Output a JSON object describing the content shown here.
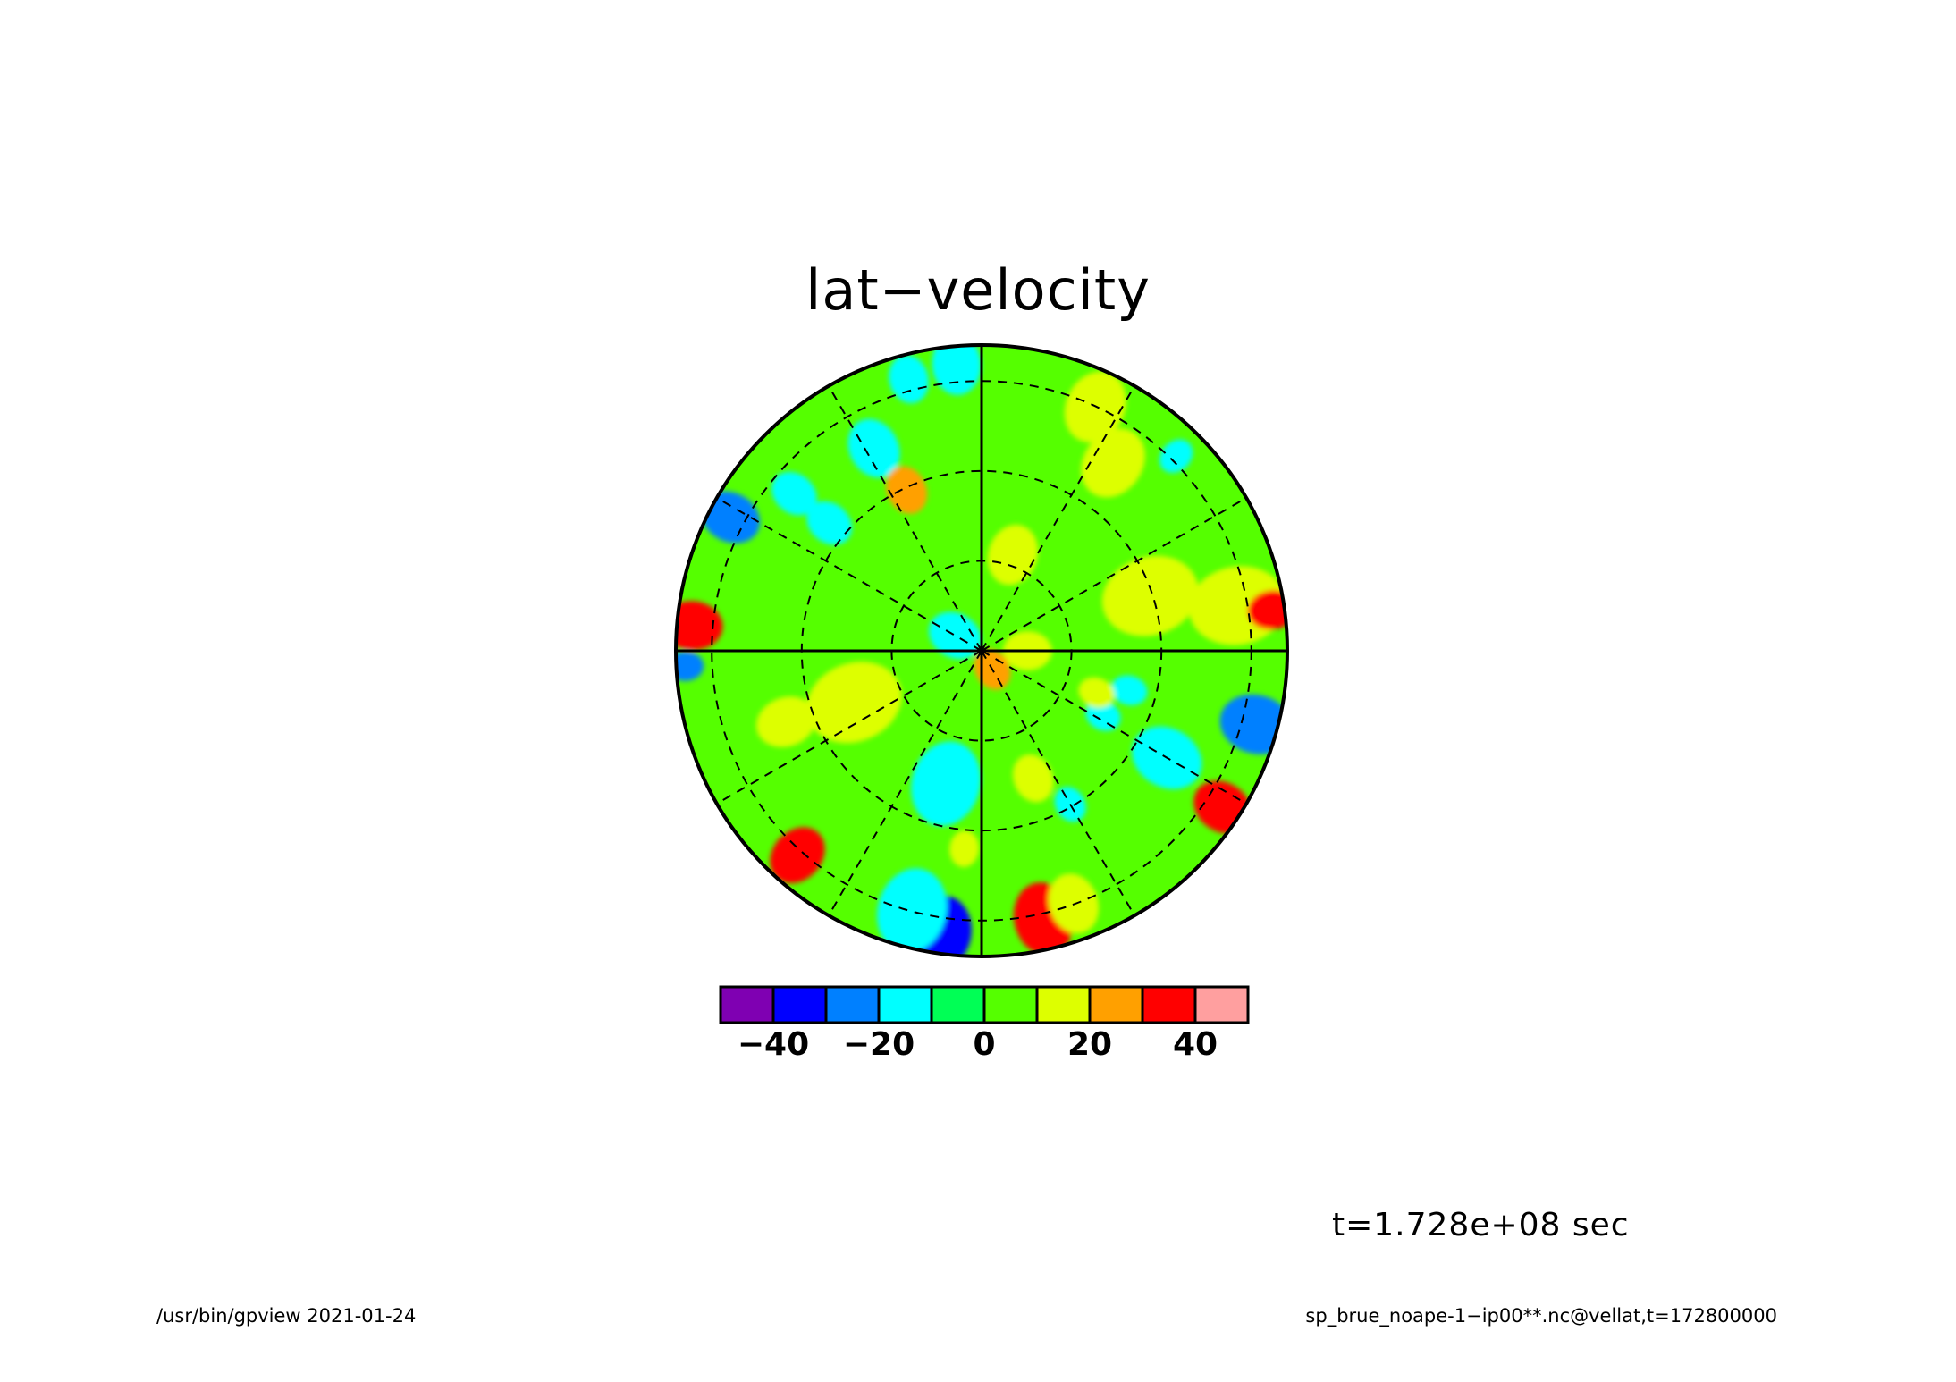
{
  "title": "lat−velocity",
  "time_label": "t=1.728e+08 sec",
  "footer_left": "/usr/bin/gpview   2021-01-24",
  "footer_right": "sp_brue_noape-1−ip00**.nc@vellat,t=172800000",
  "colorbar": {
    "levels": [
      -50,
      -40,
      -30,
      -20,
      -10,
      0,
      10,
      20,
      30,
      40,
      50
    ],
    "colors": [
      "#7f00b2",
      "#0000ff",
      "#0080ff",
      "#00ffff",
      "#00ff55",
      "#55ff00",
      "#ddff00",
      "#ffa000",
      "#ff0000",
      "#ff9f9f"
    ],
    "tick_values": [
      -40,
      -20,
      0,
      20,
      40
    ],
    "tick_labels": [
      "−40",
      "−20",
      "0",
      "20",
      "40"
    ]
  },
  "map": {
    "projection": "polar-stereographic",
    "background_value": 5,
    "latitude_circles": 3,
    "meridian_spacing_deg": 30,
    "features": [
      {
        "r": 0.93,
        "theta": 152,
        "value": -25,
        "size": 0.05
      },
      {
        "r": 0.94,
        "theta": 95,
        "value": -15,
        "size": 0.05
      },
      {
        "r": 0.75,
        "theta": 118,
        "value": -15,
        "size": 0.05
      },
      {
        "r": 0.58,
        "theta": 115,
        "value": 20,
        "size": 0.04
      },
      {
        "r": 0.92,
        "theta": 105,
        "value": -15,
        "size": 0.04
      },
      {
        "r": 0.65,
        "theta": 140,
        "value": -15,
        "size": 0.04
      },
      {
        "r": 0.8,
        "theta": 140,
        "value": -15,
        "size": 0.04
      },
      {
        "r": 0.88,
        "theta": 65,
        "value": 15,
        "size": 0.06
      },
      {
        "r": 0.75,
        "theta": 55,
        "value": 15,
        "size": 0.06
      },
      {
        "r": 0.9,
        "theta": 45,
        "value": -15,
        "size": 0.03
      },
      {
        "r": 0.33,
        "theta": 72,
        "value": 15,
        "size": 0.05
      },
      {
        "r": 0.58,
        "theta": 18,
        "value": 15,
        "size": 0.08
      },
      {
        "r": 0.85,
        "theta": 10,
        "value": 15,
        "size": 0.08
      },
      {
        "r": 0.96,
        "theta": 8,
        "value": 30,
        "size": 0.04
      },
      {
        "r": 0.95,
        "theta": 175,
        "value": 30,
        "size": 0.05
      },
      {
        "r": 0.97,
        "theta": 183,
        "value": -25,
        "size": 0.03
      },
      {
        "r": 0.92,
        "theta": 345,
        "value": -40,
        "size": 0.05
      },
      {
        "r": 0.93,
        "theta": 345,
        "value": -25,
        "size": 0.06
      },
      {
        "r": 0.94,
        "theta": 327,
        "value": 30,
        "size": 0.05
      },
      {
        "r": 0.7,
        "theta": 330,
        "value": -15,
        "size": 0.06
      },
      {
        "r": 0.5,
        "theta": 345,
        "value": -15,
        "size": 0.03
      },
      {
        "r": 0.45,
        "theta": 332,
        "value": -15,
        "size": 0.03
      },
      {
        "r": 0.93,
        "theta": 262,
        "value": -40,
        "size": 0.06
      },
      {
        "r": 0.88,
        "theta": 255,
        "value": -15,
        "size": 0.07
      },
      {
        "r": 0.9,
        "theta": 283,
        "value": 30,
        "size": 0.06
      },
      {
        "r": 0.88,
        "theta": 290,
        "value": 15,
        "size": 0.05
      },
      {
        "r": 0.9,
        "theta": 228,
        "value": 30,
        "size": 0.05
      },
      {
        "r": 0.45,
        "theta": 202,
        "value": 15,
        "size": 0.08
      },
      {
        "r": 0.68,
        "theta": 200,
        "value": 15,
        "size": 0.05
      },
      {
        "r": 0.45,
        "theta": 255,
        "value": -15,
        "size": 0.07
      },
      {
        "r": 0.65,
        "theta": 265,
        "value": 15,
        "size": 0.03
      },
      {
        "r": 0.58,
        "theta": 300,
        "value": -15,
        "size": 0.03
      },
      {
        "r": 0.45,
        "theta": 292,
        "value": 15,
        "size": 0.04
      },
      {
        "r": 0.15,
        "theta": 0,
        "value": 15,
        "size": 0.04
      },
      {
        "r": 0.4,
        "theta": 340,
        "value": 15,
        "size": 0.03
      },
      {
        "r": 0.07,
        "theta": 160,
        "value": -40,
        "size": 0.025
      },
      {
        "r": 0.1,
        "theta": 150,
        "value": -15,
        "size": 0.045
      },
      {
        "r": 0.05,
        "theta": 290,
        "value": 40,
        "size": 0.02
      },
      {
        "r": 0.07,
        "theta": 300,
        "value": 25,
        "size": 0.035
      }
    ]
  }
}
